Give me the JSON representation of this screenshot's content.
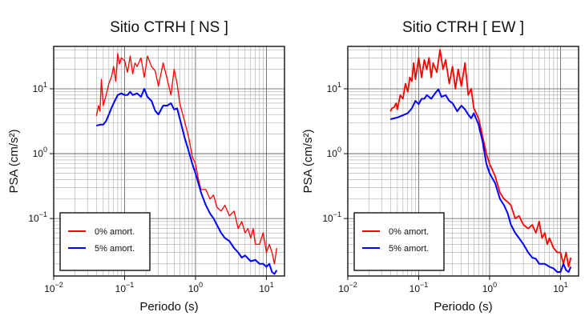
{
  "chart_data": [
    {
      "type": "line",
      "title": "Sitio CTRH [ NS ]",
      "xlabel": "Periodo (s)",
      "ylabel": "PSA (cm/s²)",
      "xscale": "log",
      "yscale": "log",
      "xlim": [
        0.01,
        18
      ],
      "ylim": [
        0.013,
        45
      ],
      "grid": true,
      "legend_position": "bottom-left",
      "xticks": [
        {
          "value": 0.01,
          "mant": "10",
          "exp": "−2"
        },
        {
          "value": 0.1,
          "mant": "10",
          "exp": "−1"
        },
        {
          "value": 1,
          "mant": "10",
          "exp": "0"
        },
        {
          "value": 10,
          "mant": "10",
          "exp": "1"
        }
      ],
      "yticks": [
        {
          "value": 0.1,
          "mant": "10",
          "exp": "−1"
        },
        {
          "value": 1,
          "mant": "10",
          "exp": "0"
        },
        {
          "value": 10,
          "mant": "10",
          "exp": "1"
        }
      ],
      "series": [
        {
          "name": "0% amort.",
          "color": "#ff0000",
          "width": 1.3,
          "x": [
            0.04,
            0.043,
            0.045,
            0.047,
            0.05,
            0.055,
            0.06,
            0.065,
            0.07,
            0.075,
            0.08,
            0.085,
            0.09,
            0.1,
            0.11,
            0.12,
            0.13,
            0.14,
            0.15,
            0.17,
            0.19,
            0.21,
            0.24,
            0.27,
            0.3,
            0.35,
            0.4,
            0.45,
            0.5,
            0.55,
            0.6,
            0.7,
            0.8,
            0.9,
            1.0,
            1.1,
            1.2,
            1.4,
            1.6,
            1.8,
            2.0,
            2.3,
            2.6,
            3.0,
            3.5,
            4.0,
            4.5,
            5.0,
            5.5,
            6.0,
            6.5,
            7.0,
            8.0,
            9.0,
            10.0,
            11.0,
            12.0,
            13.0,
            14.0
          ],
          "y": [
            3.8,
            5.5,
            4.5,
            14,
            5.5,
            8,
            12,
            15,
            22,
            13,
            35,
            24,
            30,
            27,
            18,
            32,
            17,
            25,
            22,
            30,
            15,
            32,
            22,
            19,
            11,
            25,
            14,
            8,
            20,
            12,
            6,
            3.2,
            1.8,
            0.9,
            0.7,
            0.4,
            0.28,
            0.28,
            0.2,
            0.23,
            0.15,
            0.13,
            0.16,
            0.11,
            0.13,
            0.07,
            0.09,
            0.06,
            0.07,
            0.05,
            0.07,
            0.04,
            0.04,
            0.06,
            0.03,
            0.04,
            0.03,
            0.02,
            0.035
          ]
        },
        {
          "name": "5% amort.",
          "color": "#0000ff",
          "width": 2.0,
          "x": [
            0.04,
            0.045,
            0.05,
            0.055,
            0.06,
            0.065,
            0.07,
            0.08,
            0.09,
            0.1,
            0.11,
            0.12,
            0.13,
            0.15,
            0.17,
            0.19,
            0.21,
            0.24,
            0.27,
            0.3,
            0.35,
            0.4,
            0.45,
            0.5,
            0.55,
            0.6,
            0.7,
            0.8,
            0.9,
            1.0,
            1.2,
            1.4,
            1.6,
            1.8,
            2.0,
            2.3,
            2.6,
            3.0,
            3.5,
            4.0,
            4.5,
            5.0,
            6.0,
            7.0,
            8.0,
            9.0,
            10.0,
            11.0,
            12.0,
            13.0,
            14.0
          ],
          "y": [
            2.7,
            2.8,
            2.8,
            3.2,
            4,
            5,
            6,
            8,
            8.5,
            8,
            8,
            9,
            8,
            8.5,
            7.5,
            10,
            7.5,
            6.5,
            4.6,
            4,
            5.5,
            5.5,
            6,
            4.8,
            5,
            3.5,
            1.8,
            1.1,
            0.7,
            0.5,
            0.25,
            0.16,
            0.12,
            0.1,
            0.08,
            0.06,
            0.05,
            0.045,
            0.035,
            0.03,
            0.025,
            0.027,
            0.022,
            0.023,
            0.02,
            0.02,
            0.018,
            0.02,
            0.015,
            0.014,
            0.016
          ]
        }
      ]
    },
    {
      "type": "line",
      "title": "Sitio CTRH [ EW ]",
      "xlabel": "Periodo (s)",
      "ylabel": "PSA (cm/s²)",
      "xscale": "log",
      "yscale": "log",
      "xlim": [
        0.01,
        18
      ],
      "ylim": [
        0.013,
        45
      ],
      "grid": true,
      "legend_position": "bottom-left",
      "xticks": [
        {
          "value": 0.01,
          "mant": "10",
          "exp": "−2"
        },
        {
          "value": 0.1,
          "mant": "10",
          "exp": "−1"
        },
        {
          "value": 1,
          "mant": "10",
          "exp": "0"
        },
        {
          "value": 10,
          "mant": "10",
          "exp": "1"
        }
      ],
      "yticks": [
        {
          "value": 0.1,
          "mant": "10",
          "exp": "−1"
        },
        {
          "value": 1,
          "mant": "10",
          "exp": "0"
        },
        {
          "value": 10,
          "mant": "10",
          "exp": "1"
        }
      ],
      "series": [
        {
          "name": "0% amort.",
          "color": "#ff0000",
          "width": 1.8,
          "x": [
            0.04,
            0.042,
            0.045,
            0.048,
            0.05,
            0.055,
            0.06,
            0.065,
            0.07,
            0.075,
            0.08,
            0.085,
            0.09,
            0.1,
            0.11,
            0.12,
            0.13,
            0.14,
            0.15,
            0.16,
            0.18,
            0.2,
            0.22,
            0.24,
            0.27,
            0.3,
            0.33,
            0.36,
            0.4,
            0.45,
            0.5,
            0.55,
            0.6,
            0.7,
            0.8,
            0.9,
            1.0,
            1.2,
            1.4,
            1.6,
            1.8,
            2.0,
            2.3,
            2.6,
            3.0,
            3.5,
            4.0,
            4.5,
            5.0,
            5.5,
            6.0,
            6.5,
            7.0,
            8.0,
            9.0,
            10.0,
            11.0,
            12.0,
            13.0,
            14.0
          ],
          "y": [
            4.5,
            5,
            5.2,
            6,
            4.8,
            8,
            7,
            12,
            9,
            15,
            13,
            25,
            14,
            30,
            15,
            28,
            20,
            30,
            15,
            25,
            18,
            40,
            20,
            28,
            12,
            22,
            10,
            20,
            11,
            25,
            8,
            10,
            5,
            3.5,
            1.8,
            1.0,
            0.7,
            0.45,
            0.25,
            0.2,
            0.18,
            0.16,
            0.1,
            0.11,
            0.08,
            0.07,
            0.08,
            0.06,
            0.09,
            0.05,
            0.06,
            0.04,
            0.05,
            0.035,
            0.03,
            0.03,
            0.02,
            0.03,
            0.018,
            0.025
          ]
        },
        {
          "name": "5% amort.",
          "color": "#0000ff",
          "width": 2.0,
          "x": [
            0.04,
            0.045,
            0.05,
            0.06,
            0.07,
            0.08,
            0.09,
            0.1,
            0.11,
            0.12,
            0.13,
            0.15,
            0.17,
            0.19,
            0.21,
            0.24,
            0.27,
            0.3,
            0.35,
            0.4,
            0.45,
            0.5,
            0.55,
            0.6,
            0.7,
            0.8,
            0.9,
            1.0,
            1.2,
            1.4,
            1.6,
            1.8,
            2.0,
            2.3,
            2.6,
            3.0,
            3.5,
            4.0,
            4.5,
            5.0,
            6.0,
            7.0,
            8.0,
            9.0,
            10.0,
            11.0,
            12.0,
            13.0,
            14.0
          ],
          "y": [
            3.4,
            3.5,
            3.6,
            3.9,
            4.2,
            5,
            6.5,
            5.8,
            7,
            7,
            8,
            7,
            8.5,
            9.8,
            7.5,
            8,
            6.5,
            6,
            4.5,
            5.5,
            4.8,
            4,
            3.5,
            4.2,
            2.8,
            1.5,
            0.7,
            0.5,
            0.35,
            0.2,
            0.16,
            0.12,
            0.08,
            0.06,
            0.05,
            0.04,
            0.03,
            0.025,
            0.024,
            0.02,
            0.02,
            0.018,
            0.017,
            0.015,
            0.015,
            0.02,
            0.016,
            0.015,
            0.018
          ]
        }
      ]
    }
  ]
}
